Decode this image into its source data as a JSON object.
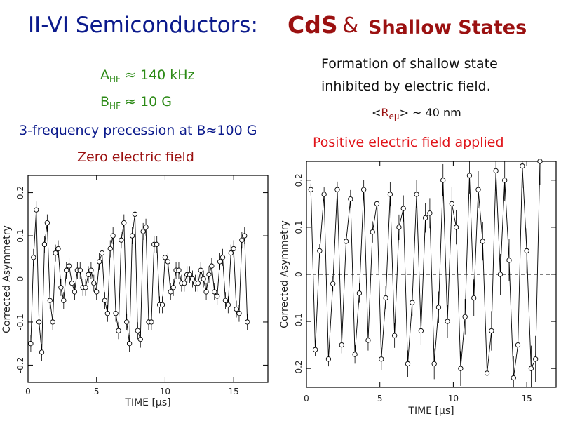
{
  "slide": {
    "title_main": "II-VI Semiconductors:",
    "title_cds": "CdS",
    "title_amp": "&",
    "title_shallow": "Shallow States",
    "ahf_label": "A",
    "ahf_sub": "HF",
    "ahf_value": " ≈ 140 kHz",
    "bhf_label": "B",
    "bhf_sub": "HF",
    "bhf_value": " ≈ 10 G",
    "three_freq": "3-frequency precession at B≈100 G",
    "zero_field": "Zero electric field",
    "formation_line1": "Formation of shallow state",
    "formation_line2": "inhibited by electric field.",
    "reu_open": "<",
    "reu_R": "R",
    "reu_sub": "eμ",
    "reu_close": ">",
    "reu_value": " ~ 40 nm",
    "positive_field": "Positive electric field applied"
  },
  "chart_data": [
    {
      "type": "scatter",
      "name": "zero-field",
      "xlabel": "TIME [μs]",
      "ylabel": "Corrected Asymmetry",
      "xlim": [
        0,
        17.5
      ],
      "ylim": [
        -0.24,
        0.24
      ],
      "xticks": [
        0,
        5,
        10,
        15
      ],
      "xtick_labels": [
        "0",
        "5",
        "10",
        "15"
      ],
      "yticks": [
        -0.2,
        -0.1,
        0,
        0.1,
        0.2
      ],
      "ytick_labels": [
        "-0.2",
        "-0.1",
        "0",
        "0.1",
        "0.2"
      ],
      "series": [
        {
          "x": [
            0.2,
            0.4,
            0.6,
            0.8,
            1.0,
            1.2,
            1.4,
            1.6,
            1.8,
            2.0,
            2.2,
            2.4,
            2.6,
            2.8,
            3.0,
            3.2,
            3.4,
            3.6,
            3.8,
            4.0,
            4.2,
            4.4,
            4.6,
            4.8,
            5.0,
            5.2,
            5.4,
            5.6,
            5.8,
            6.0,
            6.2,
            6.4,
            6.6,
            6.8,
            7.0,
            7.2,
            7.4,
            7.6,
            7.8,
            8.0,
            8.2,
            8.4,
            8.6,
            8.8,
            9.0,
            9.2,
            9.4,
            9.6,
            9.8,
            10.0,
            10.2,
            10.4,
            10.6,
            10.8,
            11.0,
            11.2,
            11.4,
            11.6,
            11.8,
            12.0,
            12.2,
            12.4,
            12.6,
            12.8,
            13.0,
            13.2,
            13.4,
            13.6,
            13.8,
            14.0,
            14.2,
            14.4,
            14.6,
            14.8,
            15.0,
            15.2,
            15.4,
            15.6,
            15.8,
            16.0
          ],
          "y": [
            -0.15,
            0.05,
            0.16,
            -0.1,
            -0.17,
            0.08,
            0.13,
            -0.05,
            -0.1,
            0.06,
            0.07,
            -0.02,
            -0.05,
            0.02,
            0.03,
            -0.01,
            -0.03,
            0.02,
            0.02,
            -0.02,
            -0.02,
            0.01,
            0.02,
            -0.01,
            -0.03,
            0.04,
            0.06,
            -0.05,
            -0.08,
            0.07,
            0.1,
            -0.08,
            -0.12,
            0.09,
            0.13,
            -0.1,
            -0.15,
            0.1,
            0.15,
            -0.12,
            -0.14,
            0.11,
            0.12,
            -0.1,
            -0.1,
            0.08,
            0.08,
            -0.06,
            -0.06,
            0.05,
            0.04,
            -0.03,
            -0.02,
            0.02,
            0.02,
            -0.01,
            -0.01,
            0.01,
            0.01,
            0.0,
            -0.01,
            -0.01,
            0.02,
            0.0,
            -0.03,
            0.01,
            0.03,
            -0.03,
            -0.04,
            0.04,
            0.05,
            -0.05,
            -0.06,
            0.06,
            0.07,
            -0.07,
            -0.08,
            0.09,
            0.1,
            -0.1
          ]
        }
      ]
    },
    {
      "type": "scatter",
      "name": "positive-field",
      "xlabel": "TIME [μs]",
      "ylabel": "Corrected Asymmetry",
      "xlim": [
        0,
        17
      ],
      "ylim": [
        -0.24,
        0.24
      ],
      "xticks": [
        0,
        5,
        10,
        15
      ],
      "xtick_labels": [
        "0",
        "5",
        "10",
        "15"
      ],
      "yticks": [
        -0.2,
        -0.1,
        0,
        0.1,
        0.2
      ],
      "ytick_labels": [
        "-0.2",
        "-0.1",
        "0",
        "0.1",
        "0.2"
      ],
      "dashed_zero_line": true,
      "series": [
        {
          "x": [
            0.3,
            0.6,
            0.9,
            1.2,
            1.5,
            1.8,
            2.1,
            2.4,
            2.7,
            3.0,
            3.3,
            3.6,
            3.9,
            4.2,
            4.5,
            4.8,
            5.1,
            5.4,
            5.7,
            6.0,
            6.3,
            6.6,
            6.9,
            7.2,
            7.5,
            7.8,
            8.1,
            8.4,
            8.7,
            9.0,
            9.3,
            9.6,
            9.9,
            10.2,
            10.5,
            10.8,
            11.1,
            11.4,
            11.7,
            12.0,
            12.3,
            12.6,
            12.9,
            13.2,
            13.5,
            13.8,
            14.1,
            14.4,
            14.7,
            15.0,
            15.3,
            15.6,
            15.9
          ],
          "y": [
            0.18,
            -0.16,
            0.05,
            0.17,
            -0.18,
            -0.02,
            0.18,
            -0.15,
            0.07,
            0.16,
            -0.17,
            -0.04,
            0.18,
            -0.14,
            0.09,
            0.15,
            -0.18,
            -0.05,
            0.17,
            -0.13,
            0.1,
            0.14,
            -0.19,
            -0.06,
            0.17,
            -0.12,
            0.12,
            0.13,
            -0.19,
            -0.07,
            0.2,
            -0.1,
            0.15,
            0.1,
            -0.2,
            -0.09,
            0.21,
            -0.05,
            0.18,
            0.07,
            -0.21,
            -0.12,
            0.22,
            0.0,
            0.2,
            0.03,
            -0.22,
            -0.15,
            0.23,
            0.05,
            -0.2,
            -0.18,
            0.24
          ]
        }
      ]
    }
  ]
}
